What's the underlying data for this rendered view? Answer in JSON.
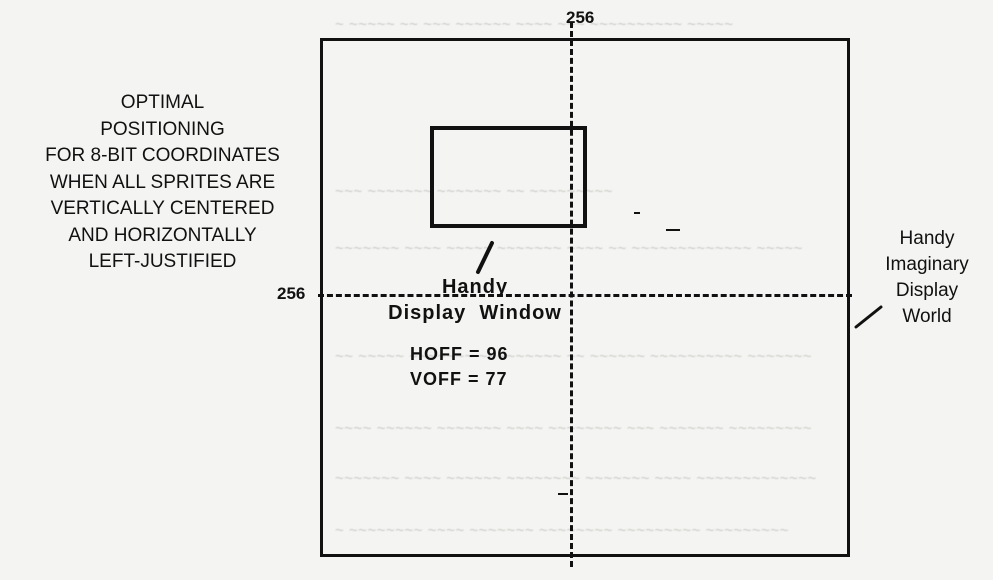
{
  "axis_labels": {
    "top_256": "256",
    "left_256": "256"
  },
  "caption": {
    "lines": [
      "OPTIMAL",
      "POSITIONING",
      "FOR 8-BIT COORDINATES",
      "WHEN ALL SPRITES ARE",
      "VERTICALLY CENTERED",
      "AND HORIZONTALLY",
      "LEFT-JUSTIFIED"
    ]
  },
  "display_window": {
    "title_line1": "Handy",
    "title_line2": "Display  Window",
    "hoff": "HOFF = 96",
    "voff": "VOFF = 77"
  },
  "world": {
    "line1": "Handy",
    "line2": "Imaginary",
    "line3": "Display",
    "line4": "World"
  },
  "colors": {
    "ink": "#111111",
    "paper": "#f4f4f2",
    "bleed": "#c9c9c6"
  }
}
